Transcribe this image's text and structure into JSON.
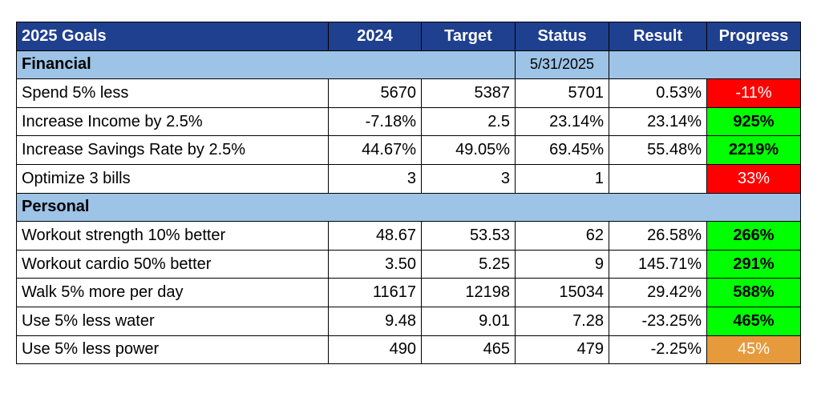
{
  "header": {
    "col_goals": "2025 Goals",
    "col_2024": "2024",
    "col_target": "Target",
    "col_status": "Status",
    "col_result": "Result",
    "col_progress": "Progress"
  },
  "financial": {
    "label": "Financial",
    "date": "5/31/2025",
    "rows": [
      {
        "goal": "Spend 5% less",
        "y2024": "5670",
        "target": "5387",
        "status": "5701",
        "result": "0.53%",
        "progress": "-11%",
        "color": "#ff0000"
      },
      {
        "goal": "Increase Income by 2.5%",
        "y2024": "-7.18%",
        "target": "2.5",
        "status": "23.14%",
        "result": "23.14%",
        "progress": "925%",
        "color": "#00ff00"
      },
      {
        "goal": "Increase Savings Rate by 2.5%",
        "y2024": "44.67%",
        "target": "49.05%",
        "status": "69.45%",
        "result": "55.48%",
        "progress": "2219%",
        "color": "#00ff00"
      },
      {
        "goal": "Optimize 3 bills",
        "y2024": "3",
        "target": "3",
        "status": "1",
        "result": "",
        "progress": "33%",
        "color": "#ff0000"
      }
    ]
  },
  "personal": {
    "label": "Personal",
    "rows": [
      {
        "goal": "Workout strength 10% better",
        "y2024": "48.67",
        "target": "53.53",
        "status": "62",
        "result": "26.58%",
        "progress": "266%",
        "color": "#00ff00"
      },
      {
        "goal": "Workout cardio 50% better",
        "y2024": "3.50",
        "target": "5.25",
        "status": "9",
        "result": "145.71%",
        "progress": "291%",
        "color": "#00ff00"
      },
      {
        "goal": "Walk 5% more per day",
        "y2024": "11617",
        "target": "12198",
        "status": "15034",
        "result": "29.42%",
        "progress": "588%",
        "color": "#00ff00"
      },
      {
        "goal": "Use 5% less water",
        "y2024": "9.48",
        "target": "9.01",
        "status": "7.28",
        "result": "-23.25%",
        "progress": "465%",
        "color": "#00ff00"
      },
      {
        "goal": "Use 5% less power",
        "y2024": "490",
        "target": "465",
        "status": "479",
        "result": "-2.25%",
        "progress": "45%",
        "color": "#e69a3c"
      }
    ]
  }
}
